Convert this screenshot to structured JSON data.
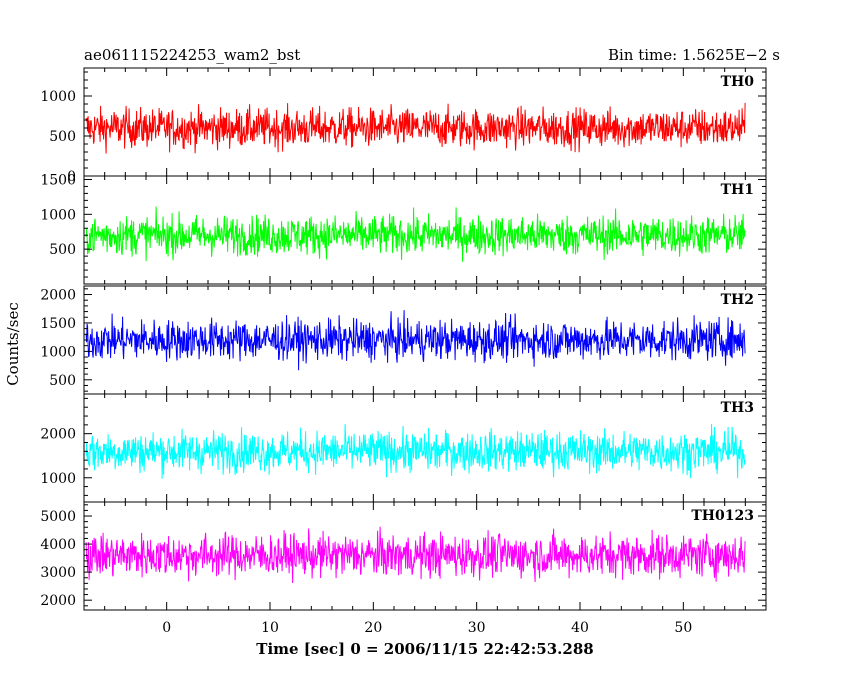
{
  "header": {
    "title": "ae061115224253_wam2_bst",
    "bin_time": "Bin time: 1.5625E−2 s"
  },
  "chart_data": {
    "type": "line",
    "title": "ae061115224253_wam2_bst",
    "xlabel": "Time [sec] 0 = 2006/11/15 22:42:53.288",
    "ylabel": "Counts/sec",
    "xlim": [
      -8,
      58
    ],
    "x_ticks": [
      0,
      10,
      20,
      30,
      40,
      50
    ],
    "x_range_data": [
      -7.8,
      56.0
    ],
    "bin_time_s": 0.015625,
    "grid": false,
    "legend": "none",
    "panels": [
      {
        "label": "TH0",
        "color": "#ff0000",
        "ylim": [
          0,
          1350
        ],
        "y_ticks": [
          0,
          500,
          1000
        ],
        "mean": 600,
        "spread": 480,
        "min_floor": 0
      },
      {
        "label": "TH1",
        "color": "#00ff00",
        "ylim": [
          0,
          1550
        ],
        "y_ticks": [
          500,
          1000,
          1500
        ],
        "mean": 700,
        "spread": 560,
        "min_floor": 0
      },
      {
        "label": "TH2",
        "color": "#0000ff",
        "ylim": [
          250,
          2150
        ],
        "y_ticks": [
          500,
          1000,
          1500,
          2000
        ],
        "mean": 1200,
        "spread": 700,
        "min_floor": 300
      },
      {
        "label": "TH3",
        "color": "#00ffff",
        "ylim": [
          450,
          2900
        ],
        "y_ticks": [
          1000,
          2000
        ],
        "mean": 1600,
        "spread": 900,
        "min_floor": 500
      },
      {
        "label": "TH0123",
        "color": "#ff00ff",
        "ylim": [
          1650,
          5500
        ],
        "y_ticks": [
          2000,
          3000,
          4000,
          5000
        ],
        "mean": 3600,
        "spread": 1500,
        "min_floor": 1700
      }
    ]
  }
}
